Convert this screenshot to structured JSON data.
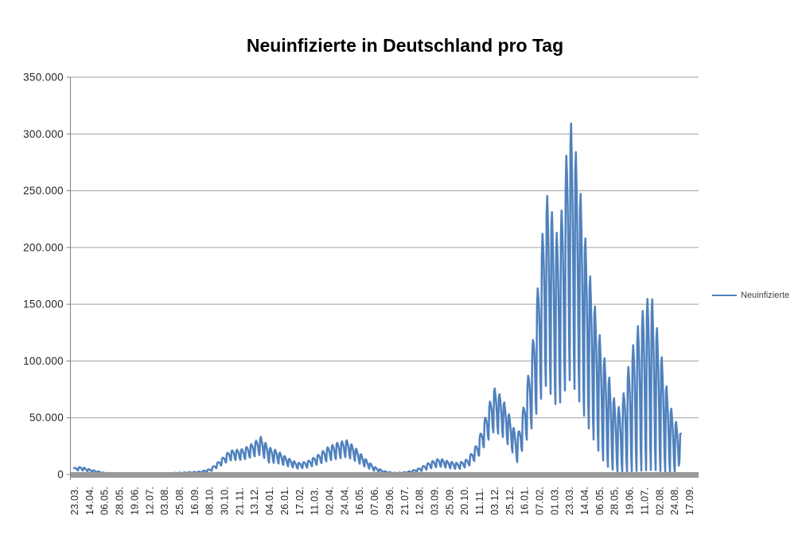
{
  "title": "Neuinfizierte in Deutschland pro Tag",
  "legend": {
    "label": "Neuinfizierte"
  },
  "colors": {
    "series": "#4F81BD",
    "gridline": "#A0A0A0",
    "axis_line": "#7F7F7F",
    "baseline_bar": "#999999",
    "axis_text": "#262626",
    "legend_text": "#3F3F3F",
    "title_text": "#000000",
    "background": "#FFFFFF"
  },
  "chart_data": {
    "type": "line",
    "title": "Neuinfizierte in Deutschland pro Tag",
    "legend_position": "right",
    "grid": "horizontal",
    "series": [
      {
        "name": "Neuinfizierte",
        "color": "#4F81BD"
      }
    ],
    "y_axis": {
      "min": 0,
      "max": 350000,
      "tick_interval": 50000,
      "tick_labels": [
        "0",
        "50.000",
        "100.000",
        "150.000",
        "200.000",
        "250.000",
        "300.000",
        "350.000"
      ]
    },
    "x_axis": {
      "tick_every_n_days": 22,
      "first_label": "23.03.",
      "tick_labels": [
        "23.03.",
        "14.04.",
        "06.05.",
        "28.05.",
        "19.06.",
        "12.07.",
        "03.08.",
        "25.08.",
        "16.09.",
        "08.10.",
        "30.10.",
        "21.11.",
        "13.12.",
        "04.01.",
        "26.01.",
        "17.02.",
        "11.03.",
        "02.04.",
        "24.04.",
        "16.05.",
        "07.06.",
        "29.06.",
        "21.07.",
        "12.08.",
        "03.09.",
        "25.09.",
        "20.10.",
        "11.11.",
        "03.12.",
        "25.12.",
        "16.01.",
        "07.02.",
        "01.03.",
        "23.03.",
        "14.04.",
        "06.05.",
        "28.05.",
        "19.06.",
        "11.07.",
        "02.08.",
        "24.08.",
        "17.09."
      ]
    },
    "daily_envelope": {
      "description": "Daily reported new infections, day 0 = 23.03.2020. Anchors give [day_index, weekday_peak_value, weekend_low_value]; daily values oscillate weekly between low and high (weekend reporting dips).",
      "anchors": [
        [
          0,
          5800,
          3200
        ],
        [
          10,
          6800,
          3800
        ],
        [
          25,
          4200,
          2200
        ],
        [
          45,
          1500,
          700
        ],
        [
          70,
          900,
          350
        ],
        [
          100,
          900,
          350
        ],
        [
          130,
          1100,
          450
        ],
        [
          160,
          1800,
          800
        ],
        [
          185,
          2600,
          1200
        ],
        [
          200,
          5000,
          2600
        ],
        [
          215,
          13000,
          7500
        ],
        [
          228,
          21000,
          12500
        ],
        [
          248,
          22500,
          13000
        ],
        [
          262,
          27500,
          15500
        ],
        [
          274,
          33200,
          17500
        ],
        [
          286,
          24000,
          10500
        ],
        [
          298,
          21000,
          10000
        ],
        [
          312,
          15000,
          7500
        ],
        [
          328,
          10200,
          5200
        ],
        [
          342,
          11500,
          6000
        ],
        [
          356,
          16500,
          8500
        ],
        [
          372,
          24000,
          12000
        ],
        [
          388,
          28500,
          14000
        ],
        [
          400,
          30200,
          15500
        ],
        [
          412,
          24000,
          12000
        ],
        [
          426,
          14500,
          7000
        ],
        [
          440,
          7000,
          3300
        ],
        [
          455,
          3000,
          1300
        ],
        [
          468,
          1600,
          600
        ],
        [
          482,
          1800,
          700
        ],
        [
          495,
          3200,
          1400
        ],
        [
          508,
          6000,
          2800
        ],
        [
          522,
          11000,
          5200
        ],
        [
          536,
          14200,
          7000
        ],
        [
          550,
          11500,
          5500
        ],
        [
          564,
          10000,
          4800
        ],
        [
          578,
          14000,
          7000
        ],
        [
          592,
          28000,
          14500
        ],
        [
          604,
          52000,
          27000
        ],
        [
          616,
          76500,
          38000
        ],
        [
          628,
          68000,
          34000
        ],
        [
          640,
          50000,
          23000
        ],
        [
          650,
          32000,
          11000
        ],
        [
          660,
          62000,
          25000
        ],
        [
          672,
          112000,
          42000
        ],
        [
          684,
          190000,
          65000
        ],
        [
          692,
          249000,
          78000
        ],
        [
          700,
          235000,
          70000
        ],
        [
          706,
          212000,
          62000
        ],
        [
          712,
          215000,
          62000
        ],
        [
          720,
          262000,
          74000
        ],
        [
          726,
          318400,
          84000
        ],
        [
          732,
          300000,
          78000
        ],
        [
          738,
          276000,
          70000
        ],
        [
          746,
          230000,
          55000
        ],
        [
          754,
          186000,
          42000
        ],
        [
          764,
          148000,
          28000
        ],
        [
          774,
          112000,
          14000
        ],
        [
          784,
          88000,
          6000
        ],
        [
          794,
          62000,
          3000
        ],
        [
          802,
          58000,
          2500
        ],
        [
          812,
          92000,
          2500
        ],
        [
          824,
          125000,
          3000
        ],
        [
          836,
          148000,
          3500
        ],
        [
          846,
          161500,
          4000
        ],
        [
          852,
          140000,
          4000
        ],
        [
          858,
          118000,
          3000
        ],
        [
          864,
          96000,
          3000
        ],
        [
          870,
          74000,
          2500
        ],
        [
          876,
          58000,
          2200
        ],
        [
          882,
          48000,
          2200
        ],
        [
          887,
          40000,
          2200
        ],
        [
          890,
          36000,
          33000
        ]
      ],
      "weekly_pattern": [
        0.9,
        1.0,
        0.88,
        0.72,
        0.5,
        0.15,
        0.0
      ]
    }
  }
}
